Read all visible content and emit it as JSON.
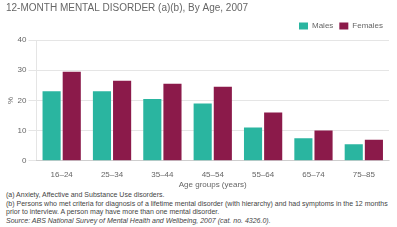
{
  "chart_data": {
    "type": "bar",
    "title": "12-MONTH MENTAL DISORDER (a)(b), By Age, 2007",
    "x_label": "Age groups (years)",
    "y_label": "%",
    "categories": [
      "16–24",
      "25–34",
      "35–44",
      "45–54",
      "55–64",
      "65–74",
      "75–85"
    ],
    "series": [
      {
        "name": "Males",
        "color": "#2ab5a0",
        "values": [
          23,
          23,
          20.5,
          19,
          11,
          7.5,
          5.5
        ]
      },
      {
        "name": "Females",
        "color": "#8b1a4a",
        "values": [
          29.5,
          26.5,
          25.5,
          24.5,
          16,
          10,
          7
        ]
      }
    ],
    "ylim": [
      0,
      40
    ],
    "yticks": [
      0,
      10,
      20,
      30,
      40
    ],
    "grid": true,
    "legend": "upper right",
    "annotations": [
      "(a) Anxiety, Affective and Substance Use disorders.",
      "(b)  Persons who met criteria for diagnosis of a lifetime mental disorder (with hierarchy) and had symptoms in the 12 months prior to interview.  A person may have more than one mental disorder.",
      "Source: ABS National Survey of Mental Health and Wellbeing, 2007 (cat. no. 4326.0)."
    ]
  }
}
